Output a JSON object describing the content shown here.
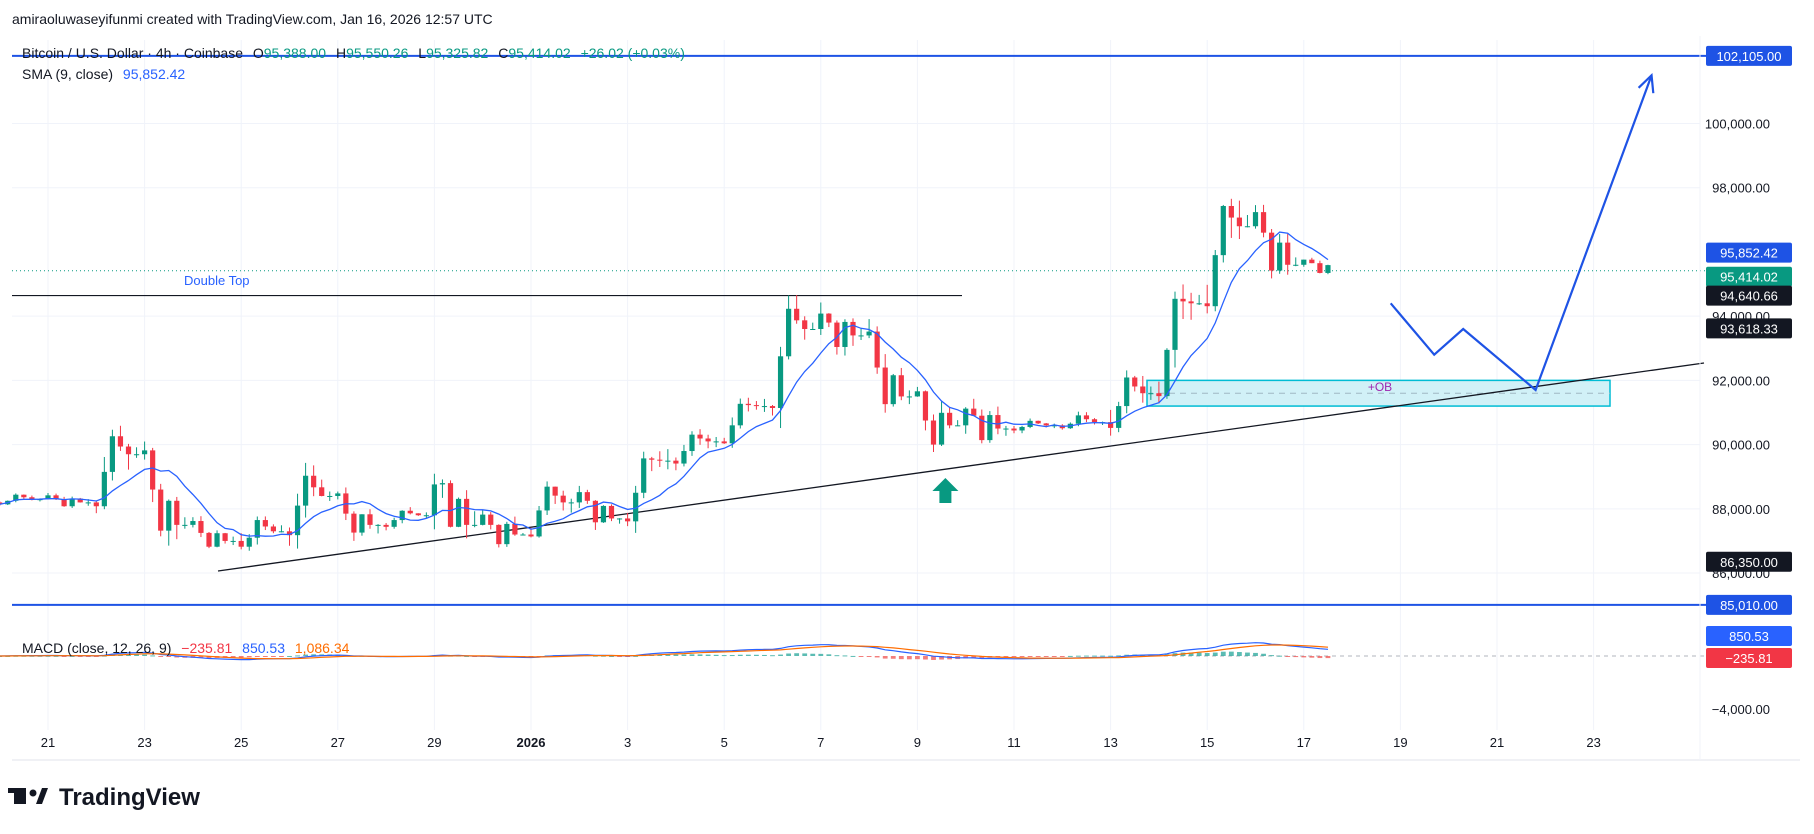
{
  "attribution": "amiraoluwaseyifunmi created with TradingView.com, Jan 16, 2026 12:57 UTC",
  "brand": "TradingView",
  "colors": {
    "up": "#089981",
    "down": "#f23645",
    "sma": "#2962ff",
    "line_blue": "#1e53e5",
    "signal": "#ff6d00",
    "ob_fill": "#d1f1f7",
    "ob_border": "#00bcd4",
    "ob_text": "#9c27b0"
  },
  "legend": {
    "symbol": "Bitcoin / U.S. Dollar · 4h · Coinbase",
    "o_label": "O",
    "o": "95,388.00",
    "h_label": "H",
    "h": "95,550.26",
    "l_label": "L",
    "l": "95,325.82",
    "c_label": "C",
    "c": "95,414.02",
    "change": "+26.02 (+0.03%)",
    "sma_label": "SMA (9, close)",
    "sma_value": "95,852.42"
  },
  "macd_legend": {
    "label": "MACD (close, 12, 26, 9)",
    "hist": "−235.81",
    "macd": "850.53",
    "signal": "1,086.34"
  },
  "chart_data": {
    "type": "candlestick",
    "title": "Bitcoin / U.S. Dollar · 4h · Coinbase",
    "y_ticks": [
      "100,000.00",
      "98,000.00",
      "94,000.00",
      "92,000.00",
      "90,000.00",
      "88,000.00",
      "86,000.00"
    ],
    "y_range": [
      84600,
      102600
    ],
    "x_ticks": [
      "21",
      "23",
      "25",
      "27",
      "29",
      "2026",
      "3",
      "5",
      "7",
      "9",
      "11",
      "13",
      "15",
      "17",
      "19",
      "21",
      "23"
    ],
    "x_range_days": [
      "2025-12-20",
      "2026-01-24"
    ],
    "price_tags": [
      {
        "text": "102,105.00",
        "value": 102105,
        "style": "blue"
      },
      {
        "text": "95,852.42",
        "value": 95852.42,
        "style": "blue"
      },
      {
        "text": "95,414.02",
        "value": 95414.02,
        "style": "green"
      },
      {
        "text": "94,640.66",
        "value": 94640.66,
        "style": "black"
      },
      {
        "text": "93,618.33",
        "value": 93618.33,
        "style": "black"
      },
      {
        "text": "86,350.00",
        "value": 86350,
        "style": "black"
      },
      {
        "text": "85,010.00",
        "value": 85010,
        "style": "blue"
      }
    ],
    "horizontal_lines": [
      {
        "value": 102105,
        "color": "blue"
      },
      {
        "value": 85010,
        "color": "blue"
      },
      {
        "value": 94640.66,
        "color": "black",
        "label": "Double Top"
      }
    ],
    "annotations": {
      "double_top": "Double Top",
      "order_block": "+OB",
      "order_block_range": [
        91200,
        92000
      ]
    },
    "candles_daily_approx": [
      {
        "day": "2025-12-20",
        "o": 88200,
        "h": 88500,
        "l": 88000,
        "c": 88300
      },
      {
        "day": "2025-12-21",
        "o": 88300,
        "h": 88600,
        "l": 88000,
        "c": 88200
      },
      {
        "day": "2025-12-22",
        "o": 88200,
        "h": 90500,
        "l": 87800,
        "c": 89700
      },
      {
        "day": "2025-12-23",
        "o": 89700,
        "h": 90000,
        "l": 87200,
        "c": 87500
      },
      {
        "day": "2025-12-24",
        "o": 87500,
        "h": 87800,
        "l": 86700,
        "c": 87000
      },
      {
        "day": "2025-12-25",
        "o": 87000,
        "h": 87800,
        "l": 86400,
        "c": 87300
      },
      {
        "day": "2025-12-26",
        "o": 87300,
        "h": 89300,
        "l": 86900,
        "c": 88400
      },
      {
        "day": "2025-12-27",
        "o": 88400,
        "h": 88600,
        "l": 87100,
        "c": 87500
      },
      {
        "day": "2025-12-28",
        "o": 87500,
        "h": 88000,
        "l": 87300,
        "c": 87800
      },
      {
        "day": "2025-12-29",
        "o": 87800,
        "h": 90200,
        "l": 87400,
        "c": 87500
      },
      {
        "day": "2025-12-30",
        "o": 87500,
        "h": 88300,
        "l": 86700,
        "c": 87200
      },
      {
        "day": "2025-12-31",
        "o": 87200,
        "h": 88900,
        "l": 87000,
        "c": 88200
      },
      {
        "day": "2026-01-01",
        "o": 88200,
        "h": 89000,
        "l": 87500,
        "c": 87700
      },
      {
        "day": "2026-01-02",
        "o": 87700,
        "h": 89600,
        "l": 87400,
        "c": 89500
      },
      {
        "day": "2026-01-03",
        "o": 89500,
        "h": 90400,
        "l": 89200,
        "c": 90100
      },
      {
        "day": "2026-01-04",
        "o": 90100,
        "h": 91300,
        "l": 89900,
        "c": 91200
      },
      {
        "day": "2026-01-05",
        "o": 91200,
        "h": 94500,
        "l": 91000,
        "c": 93600
      },
      {
        "day": "2026-01-06",
        "o": 93600,
        "h": 94800,
        "l": 92800,
        "c": 93400
      },
      {
        "day": "2026-01-07",
        "o": 93400,
        "h": 93700,
        "l": 91100,
        "c": 91500
      },
      {
        "day": "2026-01-08",
        "o": 91500,
        "h": 91900,
        "l": 89600,
        "c": 90600
      },
      {
        "day": "2026-01-09",
        "o": 90600,
        "h": 91900,
        "l": 89900,
        "c": 90500
      },
      {
        "day": "2026-01-10",
        "o": 90500,
        "h": 90800,
        "l": 90300,
        "c": 90600
      },
      {
        "day": "2026-01-11",
        "o": 90600,
        "h": 91000,
        "l": 90300,
        "c": 90700
      },
      {
        "day": "2026-01-12",
        "o": 90700,
        "h": 92300,
        "l": 90100,
        "c": 91600
      },
      {
        "day": "2026-01-13",
        "o": 91600,
        "h": 94600,
        "l": 91300,
        "c": 94400
      },
      {
        "day": "2026-01-14",
        "o": 94400,
        "h": 97700,
        "l": 94100,
        "c": 96800
      },
      {
        "day": "2026-01-15",
        "o": 96800,
        "h": 97900,
        "l": 95300,
        "c": 95600
      },
      {
        "day": "2026-01-16",
        "o": 95600,
        "h": 96000,
        "l": 95300,
        "c": 95414
      }
    ],
    "projection_path": [
      {
        "day": "2026-01-17.8",
        "value": 94400
      },
      {
        "day": "2026-01-18.7",
        "value": 92800
      },
      {
        "day": "2026-01-19.3",
        "value": 93600
      },
      {
        "day": "2026-01-20.8",
        "value": 91700
      },
      {
        "day": "2026-01-23.2",
        "value": 101500
      }
    ],
    "macd": {
      "label": "MACD (close, 12, 26, 9)",
      "hist_last": -235.81,
      "macd_last": 850.53,
      "signal_last": 1086.34,
      "y_ticks": [
        "−4,000.00"
      ]
    }
  }
}
